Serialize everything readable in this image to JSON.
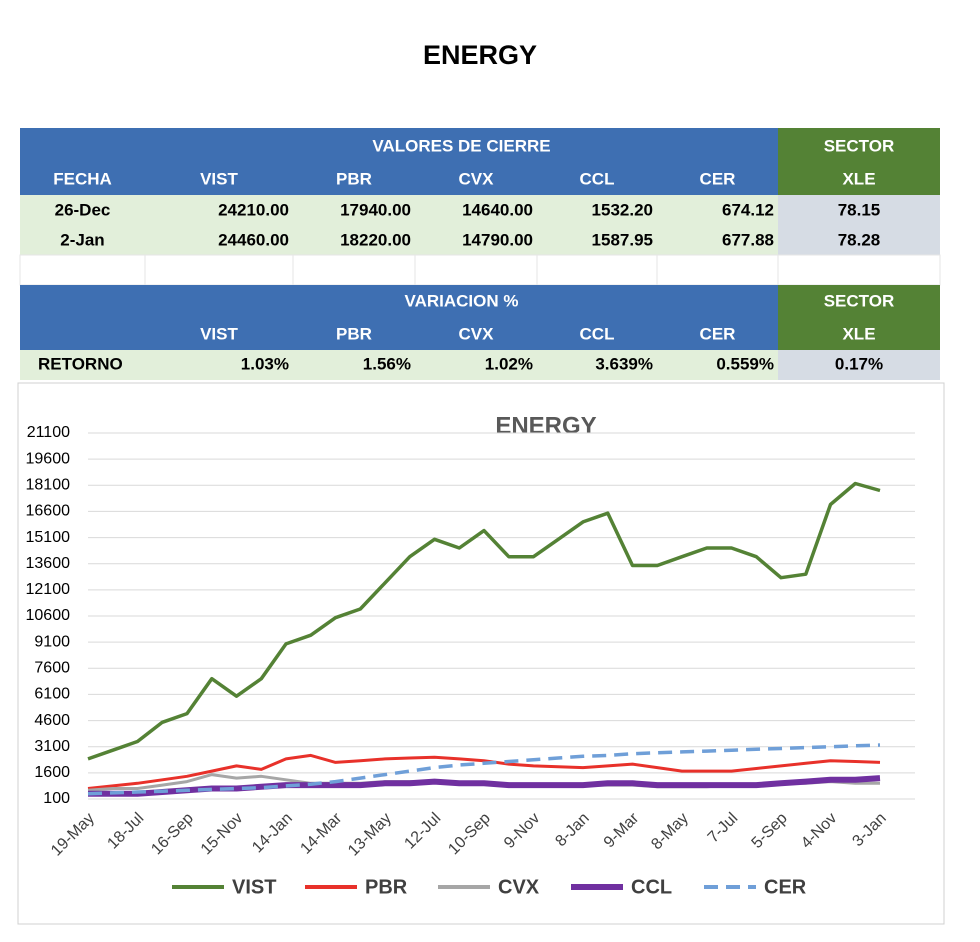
{
  "title": "ENERGY",
  "table1": {
    "group_header": "VALORES DE CIERRE",
    "sector_header": "SECTOR",
    "columns": [
      "FECHA",
      "VIST",
      "PBR",
      "CVX",
      "CCL",
      "CER",
      "XLE"
    ],
    "rows": [
      [
        "26-Dec",
        "24210.00",
        "17940.00",
        "14640.00",
        "1532.20",
        "674.12",
        "78.15"
      ],
      [
        "2-Jan",
        "24460.00",
        "18220.00",
        "14790.00",
        "1587.95",
        "677.88",
        "78.28"
      ]
    ]
  },
  "table2": {
    "group_header": "VARIACION %",
    "sector_header": "SECTOR",
    "columns": [
      "VIST",
      "PBR",
      "CVX",
      "CCL",
      "CER",
      "XLE"
    ],
    "rows": [
      [
        "RETORNO",
        "1.03%",
        "1.56%",
        "1.02%",
        "3.639%",
        "0.559%",
        "0.17%"
      ]
    ]
  },
  "chart_data": {
    "type": "line",
    "title": "ENERGY",
    "categories": [
      "19-May",
      null,
      "18-Jul",
      null,
      "16-Sep",
      null,
      "15-Nov",
      null,
      "14-Jan",
      null,
      "14-Mar",
      null,
      "13-May",
      null,
      "12-Jul",
      null,
      "10-Sep",
      null,
      "9-Nov",
      null,
      "8-Jan",
      null,
      "9-Mar",
      null,
      "8-May",
      null,
      "7-Jul",
      null,
      "5-Sep",
      null,
      "4-Nov",
      null,
      "3-Jan"
    ],
    "ylim": [
      100,
      21100
    ],
    "yticks": [
      100,
      1600,
      3100,
      4600,
      6100,
      7600,
      9100,
      10600,
      12100,
      13600,
      15100,
      16600,
      18100,
      19600,
      21100
    ],
    "grid": true,
    "series": [
      {
        "name": "VIST",
        "color": "#548235",
        "values": [
          2400,
          2900,
          3400,
          4500,
          5000,
          7000,
          6000,
          7000,
          9000,
          9500,
          10500,
          11000,
          12500,
          14000,
          15000,
          14500,
          15500,
          14000,
          14000,
          15000,
          16000,
          16500,
          13500,
          13500,
          14000,
          14500,
          14500,
          14000,
          12800,
          13000,
          17000,
          18200,
          17800
        ]
      },
      {
        "name": "PBR",
        "color": "#e8312a",
        "values": [
          700,
          850,
          1000,
          1200,
          1400,
          1700,
          2000,
          1800,
          2400,
          2600,
          2200,
          2300,
          2400,
          2450,
          2500,
          2400,
          2300,
          2100,
          2000,
          1950,
          1900,
          2000,
          2100,
          1900,
          1700,
          1700,
          1700,
          1850,
          2000,
          2150,
          2300,
          2250,
          2200
        ]
      },
      {
        "name": "CVX",
        "color": "#a6a6a6",
        "values": [
          600,
          700,
          700,
          900,
          1100,
          1500,
          1300,
          1400,
          1200,
          1000,
          1000,
          1000,
          1100,
          1100,
          1100,
          1000,
          1000,
          900,
          900,
          900,
          900,
          900,
          900,
          800,
          800,
          800,
          900,
          900,
          1000,
          1000,
          1100,
          1000,
          1000
        ]
      },
      {
        "name": "CCL",
        "color": "#7030a0",
        "values": [
          400,
          400,
          400,
          500,
          600,
          700,
          700,
          800,
          900,
          900,
          900,
          900,
          1000,
          1000,
          1100,
          1000,
          1000,
          900,
          900,
          900,
          900,
          1000,
          1000,
          900,
          900,
          900,
          900,
          900,
          1000,
          1100,
          1200,
          1200,
          1300
        ]
      },
      {
        "name": "CER",
        "color": "#6f9fd8",
        "style": "dashed",
        "values": [
          400,
          450,
          500,
          550,
          600,
          650,
          700,
          750,
          850,
          950,
          1100,
          1300,
          1500,
          1700,
          1900,
          2050,
          2150,
          2250,
          2350,
          2450,
          2550,
          2600,
          2700,
          2750,
          2800,
          2850,
          2900,
          2950,
          3000,
          3050,
          3100,
          3150,
          3200
        ]
      }
    ]
  }
}
